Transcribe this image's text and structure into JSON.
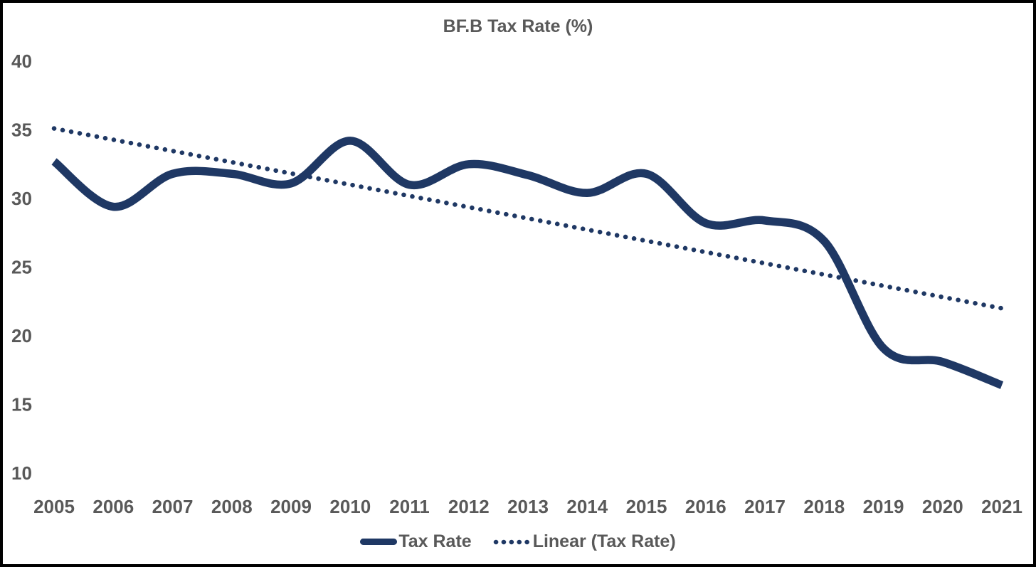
{
  "title": "BF.B Tax Rate (%)",
  "colors": {
    "series": "#1F3864",
    "text": "#595959",
    "background": "#FFFFFF",
    "border": "#000000"
  },
  "legend": {
    "items": [
      {
        "label": "Tax Rate",
        "style": "solid"
      },
      {
        "label": "Linear (Tax Rate)",
        "style": "dotted"
      }
    ]
  },
  "chart_data": {
    "type": "line",
    "title": "BF.B Tax Rate (%)",
    "categories": [
      "2005",
      "2006",
      "2007",
      "2008",
      "2009",
      "2010",
      "2011",
      "2012",
      "2013",
      "2014",
      "2015",
      "2016",
      "2017",
      "2018",
      "2019",
      "2020",
      "2021"
    ],
    "series": [
      {
        "name": "Tax Rate",
        "style": "smooth-solid",
        "color": "#1F3864",
        "values": [
          32.7,
          29.4,
          31.8,
          31.8,
          31.1,
          34.2,
          31.0,
          32.5,
          31.7,
          30.4,
          31.8,
          28.2,
          28.4,
          26.9,
          19.1,
          18.1,
          16.4
        ]
      },
      {
        "name": "Linear (Tax Rate)",
        "style": "dotted-trendline",
        "color": "#1F3864",
        "trend": {
          "start": 35.1,
          "end": 22.0
        }
      }
    ],
    "xlabel": "",
    "ylabel": "",
    "ylim": [
      10,
      40
    ],
    "ytick_step": 5,
    "grid": false,
    "legend_position": "bottom"
  }
}
